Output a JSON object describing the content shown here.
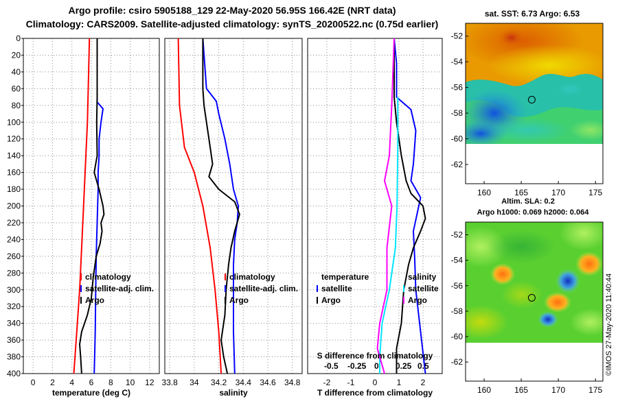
{
  "header": {
    "title_line1": "Argo profile: csiro 5905188_129 22-May-2020 56.95S 166.42E (NRT data)",
    "title_line2": "Climatology: CARS2009. Satellite-adjusted climatology: synTS_20200522.nc (0.75d earlier)"
  },
  "credit": "©IMOS 27-May-2020 11:40:44",
  "colors": {
    "climatology": "#ff0000",
    "satellite": "#0000ff",
    "argo": "#000000",
    "sat_sal": "#00e5ff",
    "argo_sal": "#ff00ff"
  },
  "depth_axis": {
    "ylim": [
      0,
      400
    ],
    "ticks": [
      "0",
      "20",
      "40",
      "60",
      "80",
      "100",
      "120",
      "140",
      "160",
      "180",
      "200",
      "220",
      "240",
      "260",
      "280",
      "300",
      "320",
      "340",
      "360",
      "380",
      "400"
    ]
  },
  "chart_data": [
    {
      "type": "line",
      "id": "temperature",
      "xlabel": "temperature (deg C)",
      "xlim": [
        -1,
        13
      ],
      "xticks": [
        "0",
        "2",
        "4",
        "6",
        "8",
        "10",
        "12"
      ],
      "legend": {
        "items": [
          "climatology",
          "satellite-adj. clim.",
          "Argo"
        ]
      },
      "series": [
        {
          "name": "climatology",
          "color": "#ff0000",
          "points": [
            [
              5.8,
              0
            ],
            [
              5.7,
              50
            ],
            [
              5.6,
              100
            ],
            [
              5.4,
              150
            ],
            [
              5.2,
              200
            ],
            [
              5.0,
              250
            ],
            [
              4.8,
              300
            ],
            [
              4.5,
              350
            ],
            [
              4.2,
              400
            ]
          ]
        },
        {
          "name": "satellite-adj. clim.",
          "color": "#0000ff",
          "points": [
            [
              6.6,
              0
            ],
            [
              6.6,
              60
            ],
            [
              6.6,
              76
            ],
            [
              7.2,
              84
            ],
            [
              7.0,
              100
            ],
            [
              6.8,
              120
            ],
            [
              6.8,
              140
            ],
            [
              6.7,
              160
            ],
            [
              6.7,
              180
            ],
            [
              6.6,
              220
            ],
            [
              6.5,
              260
            ],
            [
              6.45,
              300
            ],
            [
              6.4,
              350
            ],
            [
              6.3,
              400
            ]
          ]
        },
        {
          "name": "Argo",
          "color": "#000000",
          "points": [
            [
              6.6,
              0
            ],
            [
              6.6,
              70
            ],
            [
              6.55,
              100
            ],
            [
              6.6,
              140
            ],
            [
              6.3,
              160
            ],
            [
              6.8,
              180
            ],
            [
              7.2,
              200
            ],
            [
              7.3,
              210
            ],
            [
              7.0,
              220
            ],
            [
              7.1,
              230
            ],
            [
              6.9,
              245
            ],
            [
              6.5,
              260
            ],
            [
              6.2,
              285
            ],
            [
              6.0,
              310
            ],
            [
              5.6,
              330
            ],
            [
              5.0,
              350
            ],
            [
              4.8,
              365
            ],
            [
              4.9,
              380
            ],
            [
              5.0,
              400
            ]
          ]
        }
      ]
    },
    {
      "type": "line",
      "id": "salinity",
      "xlabel": "salinity",
      "xlim": [
        33.76,
        34.88
      ],
      "xticks": [
        "33.8",
        "34",
        "34.2",
        "34.4",
        "34.6",
        "34.8"
      ],
      "legend": {
        "items": [
          "climatology",
          "satellite-adj. clim.",
          "Argo"
        ]
      },
      "series": [
        {
          "name": "climatology",
          "color": "#ff0000",
          "points": [
            [
              33.87,
              0
            ],
            [
              33.88,
              80
            ],
            [
              33.92,
              130
            ],
            [
              34.0,
              160
            ],
            [
              34.07,
              200
            ],
            [
              34.13,
              250
            ],
            [
              34.17,
              300
            ],
            [
              34.2,
              350
            ],
            [
              34.22,
              400
            ]
          ]
        },
        {
          "name": "satellite-adj. clim.",
          "color": "#0000ff",
          "points": [
            [
              34.07,
              0
            ],
            [
              34.1,
              60
            ],
            [
              34.18,
              75
            ],
            [
              34.2,
              90
            ],
            [
              34.25,
              120
            ],
            [
              34.29,
              150
            ],
            [
              34.32,
              180
            ],
            [
              34.36,
              200
            ],
            [
              34.35,
              220
            ],
            [
              34.33,
              240
            ],
            [
              34.32,
              270
            ],
            [
              34.32,
              300
            ],
            [
              34.32,
              350
            ],
            [
              34.33,
              400
            ]
          ]
        },
        {
          "name": "Argo",
          "color": "#000000",
          "points": [
            [
              34.07,
              0
            ],
            [
              34.07,
              60
            ],
            [
              34.08,
              80
            ],
            [
              34.12,
              120
            ],
            [
              34.15,
              150
            ],
            [
              34.12,
              165
            ],
            [
              34.2,
              180
            ],
            [
              34.33,
              195
            ],
            [
              34.37,
              210
            ],
            [
              34.33,
              230
            ],
            [
              34.3,
              250
            ],
            [
              34.28,
              270
            ],
            [
              34.26,
              300
            ],
            [
              34.25,
              330
            ],
            [
              34.22,
              360
            ],
            [
              34.24,
              380
            ],
            [
              34.27,
              400
            ]
          ]
        }
      ]
    },
    {
      "type": "line",
      "id": "difference",
      "xlabel": "T difference from climatology",
      "xlabel_top": "S difference from climatology",
      "xlim": [
        -2.8,
        2.8
      ],
      "xticks": [
        "-2",
        "-1",
        "0",
        "1",
        "2"
      ],
      "xticks_top": [
        "-0.5",
        "-0.25",
        "0",
        "0.25",
        "0.5"
      ],
      "legend": {
        "temperature_title": "temperature",
        "temperature_items": [
          "satellite",
          "Argo"
        ],
        "salinity_title": "salinity",
        "salinity_items": [
          "satellite",
          "Argo"
        ]
      },
      "series": [
        {
          "name": "temperature satellite",
          "color": "#0000ff",
          "points": [
            [
              0.8,
              0
            ],
            [
              0.9,
              30
            ],
            [
              0.9,
              70
            ],
            [
              1.5,
              85
            ],
            [
              1.7,
              110
            ],
            [
              1.6,
              150
            ],
            [
              1.5,
              170
            ],
            [
              1.9,
              190
            ],
            [
              1.6,
              230
            ],
            [
              1.65,
              260
            ],
            [
              1.7,
              300
            ],
            [
              1.9,
              350
            ],
            [
              2.1,
              400
            ]
          ]
        },
        {
          "name": "temperature Argo",
          "color": "#000000",
          "points": [
            [
              0.8,
              0
            ],
            [
              0.8,
              70
            ],
            [
              0.9,
              100
            ],
            [
              1.1,
              140
            ],
            [
              1.3,
              170
            ],
            [
              1.5,
              185
            ],
            [
              2.0,
              200
            ],
            [
              2.1,
              215
            ],
            [
              1.9,
              230
            ],
            [
              1.6,
              250
            ],
            [
              1.4,
              270
            ],
            [
              1.2,
              300
            ],
            [
              1.1,
              340
            ],
            [
              0.9,
              370
            ],
            [
              0.9,
              400
            ]
          ]
        },
        {
          "name": "salinity satellite",
          "color": "#00e5ff",
          "points": [
            [
              0.95,
              70
            ],
            [
              0.95,
              130
            ],
            [
              0.92,
              200
            ],
            [
              0.85,
              250
            ],
            [
              0.6,
              300
            ],
            [
              0.3,
              340
            ],
            [
              0.2,
              380
            ],
            [
              0.2,
              400
            ]
          ]
        },
        {
          "name": "salinity Argo",
          "color": "#ff00ff",
          "points": [
            [
              0.8,
              0
            ],
            [
              0.7,
              80
            ],
            [
              0.6,
              140
            ],
            [
              0.4,
              170
            ],
            [
              0.7,
              200
            ],
            [
              0.5,
              250
            ],
            [
              0.5,
              300
            ],
            [
              0.2,
              340
            ],
            [
              0.1,
              370
            ],
            [
              0.4,
              400
            ]
          ]
        }
      ]
    },
    {
      "type": "heatmap",
      "id": "sst_map",
      "title": "sat. SST: 6.73 Argo: 6.53",
      "xticks": [
        "160",
        "165",
        "170",
        "175"
      ],
      "yticks": [
        "-52",
        "-54",
        "-56",
        "-58",
        "-60",
        "-62"
      ],
      "xlim": [
        157.5,
        176
      ],
      "ylim": [
        -63.5,
        -51
      ],
      "argo_position": [
        166.42,
        -56.95
      ]
    },
    {
      "type": "heatmap",
      "id": "sla_map",
      "title": "Altim. SLA: 0.2",
      "subtitle": "Argo h1000: 0.069 h2000: 0.064",
      "xticks": [
        "160",
        "165",
        "170",
        "175"
      ],
      "yticks": [
        "-52",
        "-54",
        "-56",
        "-58",
        "-60",
        "-62"
      ],
      "xlim": [
        157.5,
        176
      ],
      "ylim": [
        -63.5,
        -51
      ],
      "argo_position": [
        166.42,
        -56.95
      ]
    }
  ]
}
